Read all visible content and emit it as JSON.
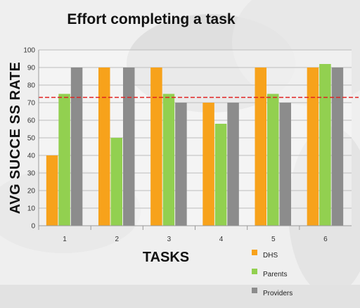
{
  "chart_data": {
    "type": "bar",
    "title": "Effort completing a task",
    "xlabel": "TASKS",
    "ylabel": "AVG SUCCE SS RATE",
    "categories": [
      "1",
      "2",
      "3",
      "4",
      "5",
      "6"
    ],
    "series": [
      {
        "name": "DHS",
        "color": "#f7a21b",
        "values": [
          40,
          90,
          90,
          70,
          90,
          90
        ]
      },
      {
        "name": "Parents",
        "color": "#92d050",
        "values": [
          75,
          50,
          75,
          58,
          75,
          92
        ]
      },
      {
        "name": "Providers",
        "color": "#8c8c8c",
        "values": [
          90,
          90,
          70,
          70,
          70,
          90
        ]
      }
    ],
    "ylim": [
      0,
      100
    ],
    "yticks": [
      "0",
      "10",
      "20",
      "30",
      "40",
      "50",
      "60",
      "70",
      "80",
      "90",
      "100"
    ],
    "reference_line": {
      "value": 73,
      "style": "dashed",
      "color": "#e02020"
    },
    "grid": true,
    "legend_position": "bottom-right"
  }
}
